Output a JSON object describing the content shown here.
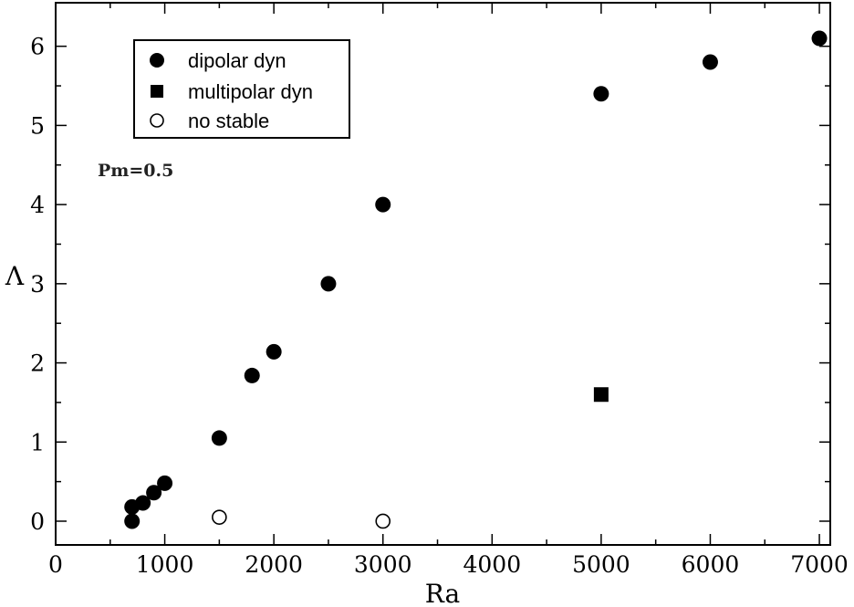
{
  "chart_data": {
    "type": "scatter",
    "xlabel": "Ra",
    "ylabel": "Λ",
    "xlim": [
      0,
      7100
    ],
    "ylim": [
      -0.3,
      6.55
    ],
    "xticks": [
      0,
      1000,
      2000,
      3000,
      4000,
      5000,
      6000,
      7000
    ],
    "yticks": [
      0,
      1,
      2,
      3,
      4,
      5,
      6
    ],
    "grid": false,
    "legend_position": "top-left",
    "annotation": "Pm=0.5",
    "series": [
      {
        "name": "dipolar dyn",
        "marker": "filled-circle",
        "points": [
          [
            700,
            0.0
          ],
          [
            700,
            0.18
          ],
          [
            800,
            0.23
          ],
          [
            900,
            0.36
          ],
          [
            1000,
            0.48
          ],
          [
            1500,
            1.05
          ],
          [
            1800,
            1.84
          ],
          [
            2000,
            2.14
          ],
          [
            2500,
            3.0
          ],
          [
            3000,
            4.0
          ],
          [
            5000,
            5.4
          ],
          [
            6000,
            5.8
          ],
          [
            7000,
            6.1
          ]
        ]
      },
      {
        "name": "multipolar dyn",
        "marker": "filled-square",
        "points": [
          [
            5000,
            1.6
          ]
        ]
      },
      {
        "name": "no stable",
        "marker": "open-circle",
        "points": [
          [
            1500,
            0.05
          ],
          [
            3000,
            0.0
          ]
        ]
      }
    ]
  }
}
